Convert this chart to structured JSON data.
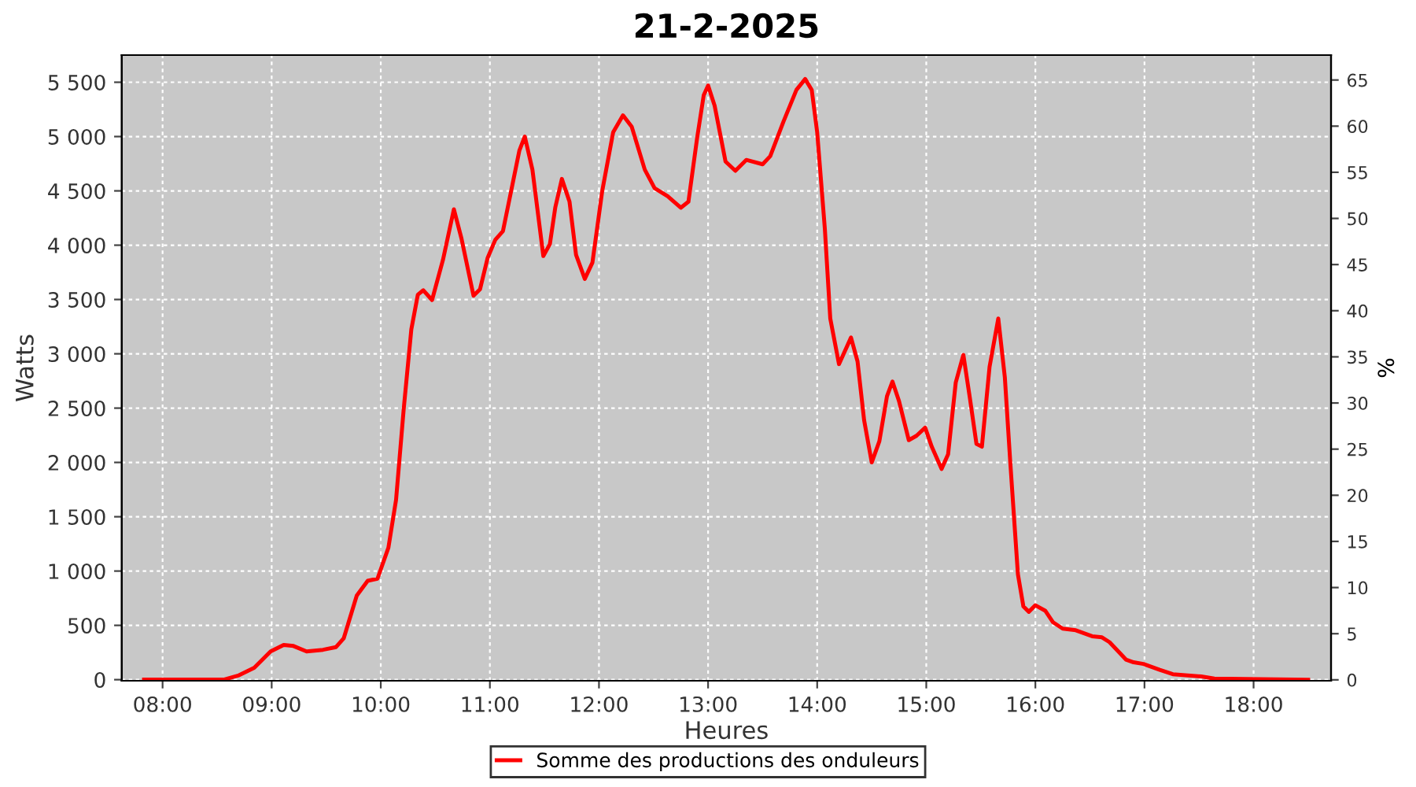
{
  "chart_data": {
    "type": "line",
    "title": "21-2-2025",
    "xlabel": "Heures",
    "ylabel": "Watts",
    "y2label": "%",
    "xlim": [
      7.626,
      18.71
    ],
    "xticks": [
      {
        "value": 8,
        "label": "08:00"
      },
      {
        "value": 9,
        "label": "09:00"
      },
      {
        "value": 10,
        "label": "10:00"
      },
      {
        "value": 11,
        "label": "11:00"
      },
      {
        "value": 12,
        "label": "12:00"
      },
      {
        "value": 13,
        "label": "13:00"
      },
      {
        "value": 14,
        "label": "14:00"
      },
      {
        "value": 15,
        "label": "15:00"
      },
      {
        "value": 16,
        "label": "16:00"
      },
      {
        "value": 17,
        "label": "17:00"
      },
      {
        "value": 18,
        "label": "18:00"
      }
    ],
    "ylim": [
      -10,
      5750
    ],
    "yticks": [
      0,
      500,
      {
        "value": 1000,
        "label": "1 000"
      },
      {
        "value": 1500,
        "label": "1 500"
      },
      {
        "value": 2000,
        "label": "2 000"
      },
      {
        "value": 2500,
        "label": "2 500"
      },
      {
        "value": 3000,
        "label": "3 000"
      },
      {
        "value": 3500,
        "label": "3 500"
      },
      {
        "value": 4000,
        "label": "4 000"
      },
      {
        "value": 4500,
        "label": "4 500"
      },
      {
        "value": 5000,
        "label": "5 000"
      },
      {
        "value": 5500,
        "label": "5 500"
      }
    ],
    "y2lim": [
      -0.1,
      67.7
    ],
    "y2ticks": [
      0,
      5,
      10,
      15,
      20,
      25,
      30,
      35,
      40,
      45,
      50,
      55,
      60,
      65
    ],
    "grid": true,
    "legend": "bottom",
    "marker": "none",
    "line_style": "solid",
    "series": [
      {
        "name": "Somme des productions des onduleurs",
        "color": "#ff0000",
        "x": [
          7.83,
          8.56,
          8.7,
          8.84,
          8.99,
          9.11,
          9.2,
          9.32,
          9.47,
          9.59,
          9.66,
          9.78,
          9.88,
          9.97,
          10.07,
          10.14,
          10.21,
          10.28,
          10.34,
          10.39,
          10.47,
          10.57,
          10.67,
          10.74,
          10.85,
          10.91,
          10.98,
          11.05,
          11.12,
          11.19,
          11.27,
          11.32,
          11.39,
          11.49,
          11.55,
          11.6,
          11.66,
          11.73,
          11.79,
          11.87,
          11.94,
          12.03,
          12.13,
          12.22,
          12.3,
          12.42,
          12.51,
          12.63,
          12.75,
          12.82,
          12.9,
          12.96,
          13.0,
          13.06,
          13.16,
          13.25,
          13.35,
          13.5,
          13.57,
          13.69,
          13.81,
          13.89,
          13.95,
          14.0,
          14.07,
          14.12,
          14.2,
          14.31,
          14.37,
          14.43,
          14.5,
          14.57,
          14.64,
          14.69,
          14.75,
          14.84,
          14.91,
          14.99,
          15.05,
          15.14,
          15.2,
          15.27,
          15.34,
          15.4,
          15.46,
          15.51,
          15.58,
          15.66,
          15.72,
          15.77,
          15.84,
          15.89,
          15.94,
          16.0,
          16.09,
          16.16,
          16.25,
          16.37,
          16.44,
          16.52,
          16.61,
          16.68,
          16.83,
          16.9,
          16.99,
          17.14,
          17.26,
          17.52,
          17.64,
          18.5
        ],
        "values": [
          0,
          0,
          40,
          110,
          260,
          320,
          310,
          260,
          275,
          300,
          380,
          775,
          910,
          930,
          1215,
          1655,
          2490,
          3225,
          3545,
          3585,
          3495,
          3865,
          4330,
          4060,
          3535,
          3595,
          3885,
          4050,
          4130,
          4475,
          4870,
          5000,
          4695,
          3900,
          4010,
          4350,
          4610,
          4400,
          3910,
          3690,
          3840,
          4500,
          5040,
          5195,
          5090,
          4695,
          4525,
          4450,
          4345,
          4400,
          4990,
          5380,
          5470,
          5285,
          4770,
          4685,
          4785,
          4745,
          4820,
          5135,
          5430,
          5530,
          5430,
          5040,
          4155,
          3325,
          2905,
          3150,
          2930,
          2390,
          2000,
          2195,
          2610,
          2745,
          2565,
          2205,
          2245,
          2320,
          2145,
          1940,
          2075,
          2735,
          2990,
          2590,
          2170,
          2145,
          2880,
          3325,
          2785,
          2000,
          970,
          675,
          625,
          685,
          635,
          530,
          470,
          455,
          430,
          400,
          390,
          345,
          185,
          160,
          145,
          90,
          50,
          30,
          10,
          0
        ]
      }
    ]
  }
}
